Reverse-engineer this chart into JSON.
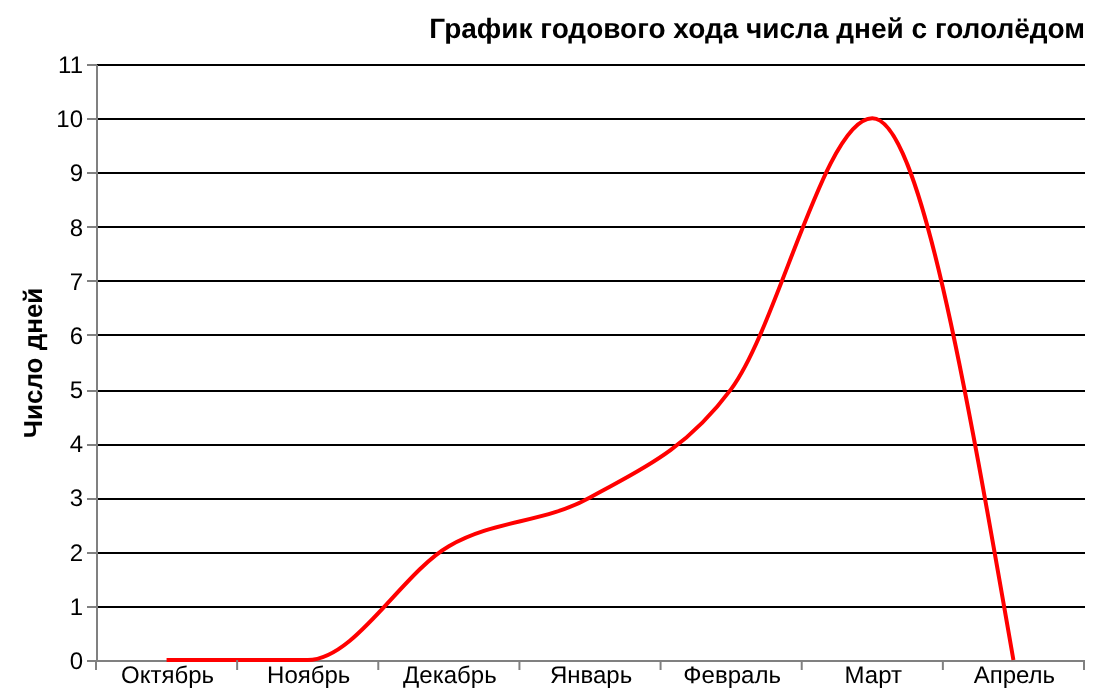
{
  "chart_data": {
    "type": "line",
    "title": "График годового хода числа дней с гололёдом",
    "ylabel": "Число дней",
    "categories": [
      "Октябрь",
      "Ноябрь",
      "Декабрь",
      "Январь",
      "Февраль",
      "Март",
      "Апрель"
    ],
    "series": [
      {
        "color": "#ff0000",
        "values": [
          0,
          0,
          2.1,
          3.0,
          5.0,
          10.0,
          0
        ]
      }
    ],
    "ylim": [
      0,
      11
    ],
    "yticks": [
      0,
      1,
      2,
      3,
      4,
      5,
      6,
      7,
      8,
      9,
      10,
      11
    ],
    "grid": "y",
    "marker": "none",
    "line_style": "solid"
  }
}
